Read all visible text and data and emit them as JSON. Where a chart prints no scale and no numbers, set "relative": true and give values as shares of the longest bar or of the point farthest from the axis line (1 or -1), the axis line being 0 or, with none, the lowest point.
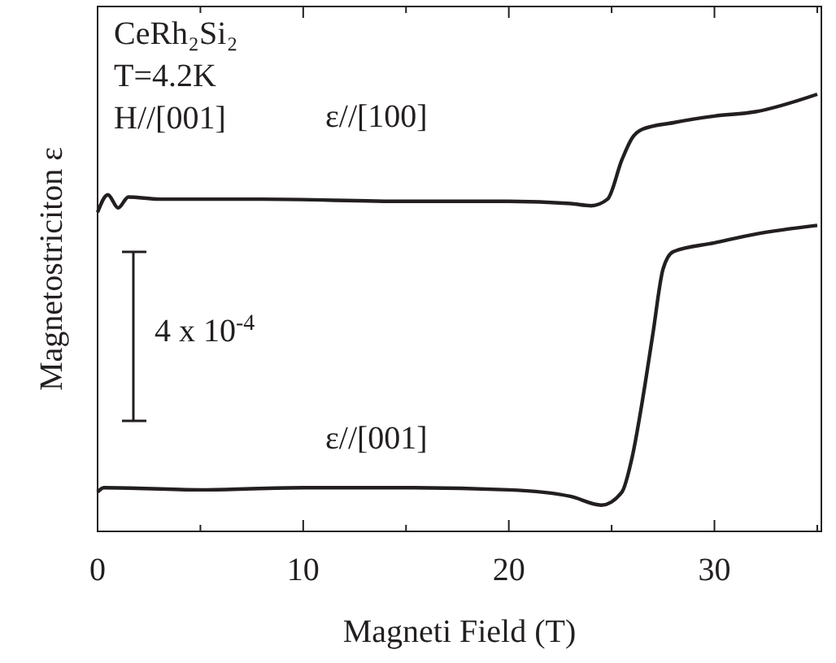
{
  "chart_data": {
    "type": "line",
    "relative": true,
    "xlabel": "Magneti Field (T)",
    "ylabel": "Magnetostriciton ε",
    "xlim": [
      0,
      35.2
    ],
    "xticks": [
      0,
      {
        "value": 5,
        "label": null
      },
      10,
      {
        "value": 15,
        "label": null
      },
      20,
      {
        "value": 25,
        "label": null
      },
      30,
      {
        "value": 35,
        "label": null
      }
    ],
    "grid": false,
    "marker": "none",
    "line_style": "solid",
    "annotations": [
      "CeRh₂Si₂",
      "T=4.2K",
      "H//[001]",
      "4 x 10$^{-4}$"
    ],
    "series": [
      {
        "name": "ε//[100]",
        "color": "#231f20",
        "x": [
          0,
          0.5,
          1,
          1.5,
          3,
          8,
          15,
          20,
          23,
          24,
          24.8,
          25.5,
          26,
          26.5,
          28,
          30,
          32,
          35
        ],
        "values": [
          0.73,
          0.77,
          0.74,
          0.765,
          0.76,
          0.76,
          0.755,
          0.755,
          0.75,
          0.745,
          0.76,
          0.85,
          0.9,
          0.92,
          0.935,
          0.95,
          0.96,
          1
        ]
      },
      {
        "name": "ε//[001]",
        "color": "#231f20",
        "x": [
          0,
          0.3,
          5,
          10,
          15,
          20,
          23,
          24.5,
          25.5,
          26,
          26.5,
          27,
          27.5,
          28,
          30,
          32,
          35
        ],
        "values": [
          0.09,
          0.1,
          0.095,
          0.1,
          0.1,
          0.095,
          0.08,
          0.06,
          0.09,
          0.17,
          0.3,
          0.45,
          0.6,
          0.64,
          0.66,
          0.68,
          0.7
        ]
      }
    ]
  }
}
